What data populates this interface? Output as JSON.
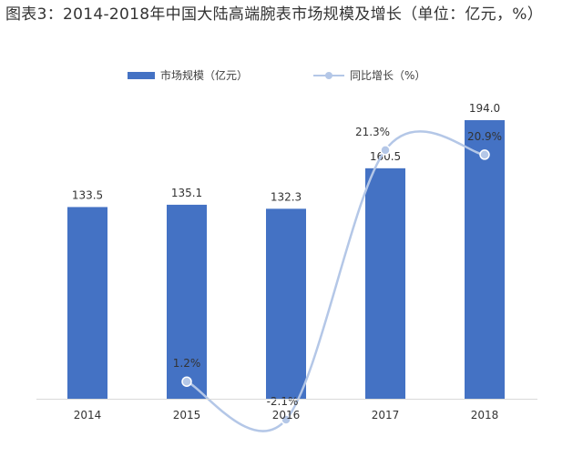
{
  "title": "图表3：2014-2018年中国大陆高端腕表市场规模及增长（单位：亿元，%）",
  "legend": {
    "bar_label": "市场规模（亿元）",
    "line_label": "同比增长（%）"
  },
  "colors": {
    "bar": "#4472C4",
    "line": "#b4c7e7",
    "point": "#b4c7e7"
  },
  "chart_data": {
    "type": "bar",
    "categories": [
      "2014",
      "2015",
      "2016",
      "2017",
      "2018"
    ],
    "series": [
      {
        "name": "市场规模（亿元）",
        "type": "bar",
        "values": [
          133.5,
          135.1,
          132.3,
          160.5,
          194.0
        ],
        "labels": [
          "133.5",
          "135.1",
          "132.3",
          "160.5",
          "194.0"
        ]
      },
      {
        "name": "同比增长（%）",
        "type": "line",
        "smooth": true,
        "values": [
          null,
          1.2,
          -2.1,
          21.3,
          20.9
        ],
        "labels": [
          "",
          "1.2%",
          "-2.1%",
          "21.3%",
          "20.9%"
        ]
      }
    ],
    "title": "图表3：2014-2018年中国大陆高端腕表市场规模及增长（单位：亿元，%）",
    "xlabel": "",
    "ylabel": "",
    "grid": false,
    "legend_position": "top"
  }
}
